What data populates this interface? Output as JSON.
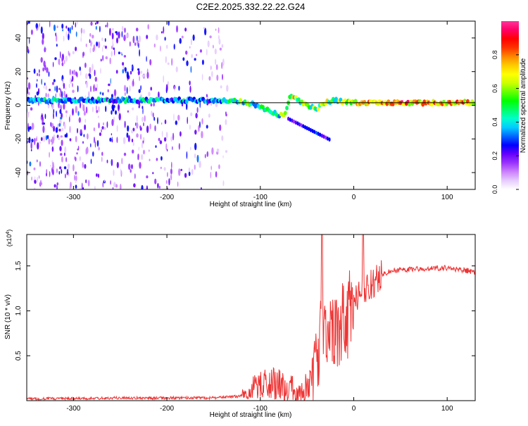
{
  "title": "C2E2.2025.332.22.22.G24",
  "colorbar": {
    "label": "Normalized spectral amplitude",
    "ticks": [
      "0.0",
      "0.2",
      "0.4",
      "0.6",
      "0.8"
    ],
    "colors": [
      "#ffffff",
      "#e6ccff",
      "#cc80ff",
      "#9933ff",
      "#6600ff",
      "#0000ff",
      "#0066ff",
      "#00ccff",
      "#00ffcc",
      "#00ff66",
      "#00ff00",
      "#66ff00",
      "#ccff00",
      "#ffff00",
      "#ffcc00",
      "#ff8800",
      "#ff3300",
      "#ff0000",
      "#ff0066",
      "#ff3399"
    ]
  },
  "chart_data": [
    {
      "type": "heatmap",
      "title": "C2E2.2025.332.22.22.G24",
      "xlabel": "Height of straight line (km)",
      "ylabel": "Frequency (Hz)",
      "xlim": [
        -350,
        130
      ],
      "ylim": [
        -50,
        50
      ],
      "xticks": [
        -300,
        -200,
        -100,
        0,
        100
      ],
      "yticks": [
        -40,
        -20,
        0,
        20,
        40
      ],
      "zlim": [
        0,
        1
      ],
      "line_color": "#000000",
      "ridge": {
        "x": [
          -350,
          -300,
          -250,
          -200,
          -150,
          -130,
          -110,
          -90,
          -75,
          -68,
          -60,
          -50,
          -40,
          -30,
          -20,
          -10,
          0,
          20,
          40,
          60,
          80,
          100,
          130
        ],
        "freq": [
          3,
          3,
          3,
          3,
          3,
          3,
          1,
          -3,
          -7,
          6,
          3,
          0,
          -2,
          2,
          3,
          2,
          1.5,
          1.5,
          1.5,
          1.5,
          1.5,
          1.5,
          1.5
        ]
      },
      "straight_line_x": [
        -130,
        130
      ],
      "straight_line_freq": [
        1.5,
        1.5
      ]
    },
    {
      "type": "line",
      "xlabel": "Height of straight line (km)",
      "ylabel": "SNR (10 * v/v)",
      "y_multiplier_label": "(x10",
      "y_multiplier_exp": "4",
      "y_multiplier_close": ")",
      "xlim": [
        -350,
        130
      ],
      "ylim": [
        0,
        1.85
      ],
      "xticks": [
        -300,
        -200,
        -100,
        0,
        100
      ],
      "yticks": [
        "0.5",
        "1.0",
        "1.5"
      ],
      "ytick_values": [
        0.5,
        1.0,
        1.5
      ],
      "color": "#ee3333",
      "series": {
        "name": "SNR",
        "x": [
          -350,
          -250,
          -150,
          -120,
          -105,
          -95,
          -80,
          -65,
          -55,
          -45,
          -38,
          -34,
          -30,
          -27,
          -24,
          -20,
          -16,
          -12,
          -8,
          -5,
          0,
          10,
          20,
          30,
          40,
          60,
          80,
          95,
          105,
          120,
          130
        ],
        "y": [
          0.02,
          0.03,
          0.03,
          0.05,
          0.12,
          0.2,
          0.18,
          0.12,
          0.12,
          0.2,
          0.45,
          0.85,
          0.7,
          0.55,
          0.9,
          0.8,
          0.75,
          0.9,
          0.8,
          1.0,
          1.1,
          1.2,
          1.3,
          1.4,
          1.45,
          1.46,
          1.47,
          1.48,
          1.47,
          1.45,
          1.43
        ]
      }
    }
  ]
}
